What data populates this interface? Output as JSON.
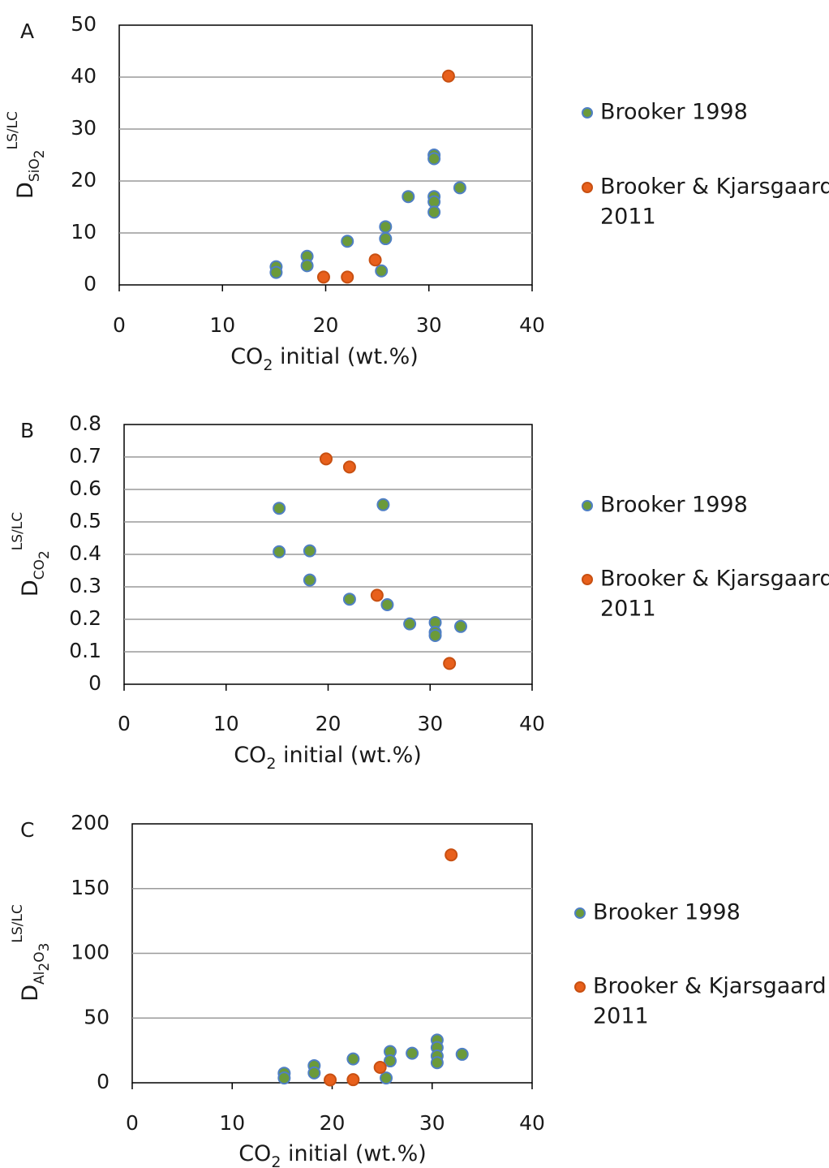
{
  "colors": {
    "brooker1998_fill": "#6b9a3a",
    "brooker1998_edge": "#4f7fc4",
    "brooker2011_fill": "#e8601c",
    "brooker2011_edge": "#c85012",
    "grid": "#9a9a9a",
    "axis": "#000000"
  },
  "chart_data": [
    {
      "type": "scatter",
      "panel_label": "A",
      "xlabel": {
        "main": "CO",
        "sub": "2",
        "rest": " initial (wt.%)"
      },
      "ylabel": {
        "main": "D",
        "sub": "SiO",
        "subsub": "2",
        "sup": "LS/LC"
      },
      "xlim": [
        0,
        40
      ],
      "ylim": [
        0,
        50
      ],
      "xticks": [
        "0",
        "10",
        "20",
        "30",
        "40"
      ],
      "yticks": [
        "0",
        "10",
        "20",
        "30",
        "40",
        "50"
      ],
      "grid": "horizontal",
      "legend_position": "right",
      "legend": [
        {
          "name": "Brooker 1998"
        },
        {
          "name": "Brooker & Kjarsgaard",
          "name_line2": "2011"
        }
      ],
      "series": [
        {
          "name": "Brooker 1998",
          "points": [
            [
              15.2,
              3.5
            ],
            [
              15.2,
              2.4
            ],
            [
              18.2,
              5.5
            ],
            [
              18.2,
              3.7
            ],
            [
              22.1,
              8.4
            ],
            [
              25.8,
              11.2
            ],
            [
              25.8,
              8.9
            ],
            [
              25.4,
              2.7
            ],
            [
              28,
              17
            ],
            [
              30.5,
              25
            ],
            [
              30.5,
              24.3
            ],
            [
              30.5,
              17
            ],
            [
              30.5,
              16
            ],
            [
              30.5,
              14
            ],
            [
              33,
              18.7
            ]
          ]
        },
        {
          "name": "Brooker & Kjarsgaard 2011",
          "points": [
            [
              19.8,
              1.5
            ],
            [
              22.1,
              1.5
            ],
            [
              24.8,
              4.8
            ],
            [
              31.9,
              40.2
            ]
          ]
        }
      ]
    },
    {
      "type": "scatter",
      "panel_label": "B",
      "xlabel": {
        "main": "CO",
        "sub": "2",
        "rest": " initial (wt.%)"
      },
      "ylabel": {
        "main": "D",
        "sub": "CO",
        "subsub": "2",
        "sup": "LS/LC"
      },
      "xlim": [
        0,
        40
      ],
      "ylim": [
        0,
        0.8
      ],
      "xticks": [
        "0",
        "10",
        "20",
        "30",
        "40"
      ],
      "yticks": [
        "0",
        "0.1",
        "0.2",
        "0.3",
        "0.4",
        "0.5",
        "0.6",
        "0.7",
        "0.8"
      ],
      "grid": "horizontal",
      "legend_position": "right",
      "legend": [
        {
          "name": "Brooker 1998"
        },
        {
          "name": "Brooker & Kjarsgaard",
          "name_line2": "2011"
        }
      ],
      "series": [
        {
          "name": "Brooker 1998",
          "points": [
            [
              15.2,
              0.542
            ],
            [
              15.2,
              0.408
            ],
            [
              18.2,
              0.411
            ],
            [
              18.2,
              0.321
            ],
            [
              22.1,
              0.262
            ],
            [
              25.4,
              0.553
            ],
            [
              25.8,
              0.245
            ],
            [
              28,
              0.186
            ],
            [
              30.5,
              0.19
            ],
            [
              30.5,
              0.16
            ],
            [
              30.5,
              0.15
            ],
            [
              33,
              0.178
            ]
          ]
        },
        {
          "name": "Brooker & Kjarsgaard 2011",
          "points": [
            [
              19.8,
              0.694
            ],
            [
              22.1,
              0.669
            ],
            [
              24.8,
              0.274
            ],
            [
              31.9,
              0.064
            ]
          ]
        }
      ]
    },
    {
      "type": "scatter",
      "panel_label": "C",
      "xlabel": {
        "main": "CO",
        "sub": "2",
        "rest": " initial (wt.%)"
      },
      "ylabel": {
        "main": "D",
        "sub": "Al",
        "subsub": "2",
        "sub2": "O",
        "subsub2": "3",
        "sup": "LS/LC"
      },
      "xlim": [
        0,
        40
      ],
      "ylim": [
        0,
        200
      ],
      "xticks": [
        "0",
        "10",
        "20",
        "30",
        "40"
      ],
      "yticks": [
        "0",
        "50",
        "100",
        "150",
        "200"
      ],
      "grid": "horizontal",
      "legend_position": "right",
      "legend": [
        {
          "name": "Brooker 1998"
        },
        {
          "name": "Brooker & Kjarsgaard",
          "name_line2": "2011"
        }
      ],
      "series": [
        {
          "name": "Brooker 1998",
          "points": [
            [
              15.2,
              7.4
            ],
            [
              15.2,
              3.7
            ],
            [
              18.2,
              13.2
            ],
            [
              18.2,
              7.6
            ],
            [
              22.1,
              18.4
            ],
            [
              25.4,
              3.7
            ],
            [
              25.8,
              24.1
            ],
            [
              25.8,
              16.9
            ],
            [
              28,
              22.8
            ],
            [
              30.5,
              33
            ],
            [
              30.5,
              27.2
            ],
            [
              30.5,
              20.7
            ],
            [
              30.5,
              15.5
            ],
            [
              33,
              22
            ]
          ]
        },
        {
          "name": "Brooker & Kjarsgaard 2011",
          "points": [
            [
              19.8,
              2.2
            ],
            [
              22.1,
              2.4
            ],
            [
              24.8,
              11.9
            ],
            [
              31.9,
              176
            ]
          ]
        }
      ]
    }
  ]
}
